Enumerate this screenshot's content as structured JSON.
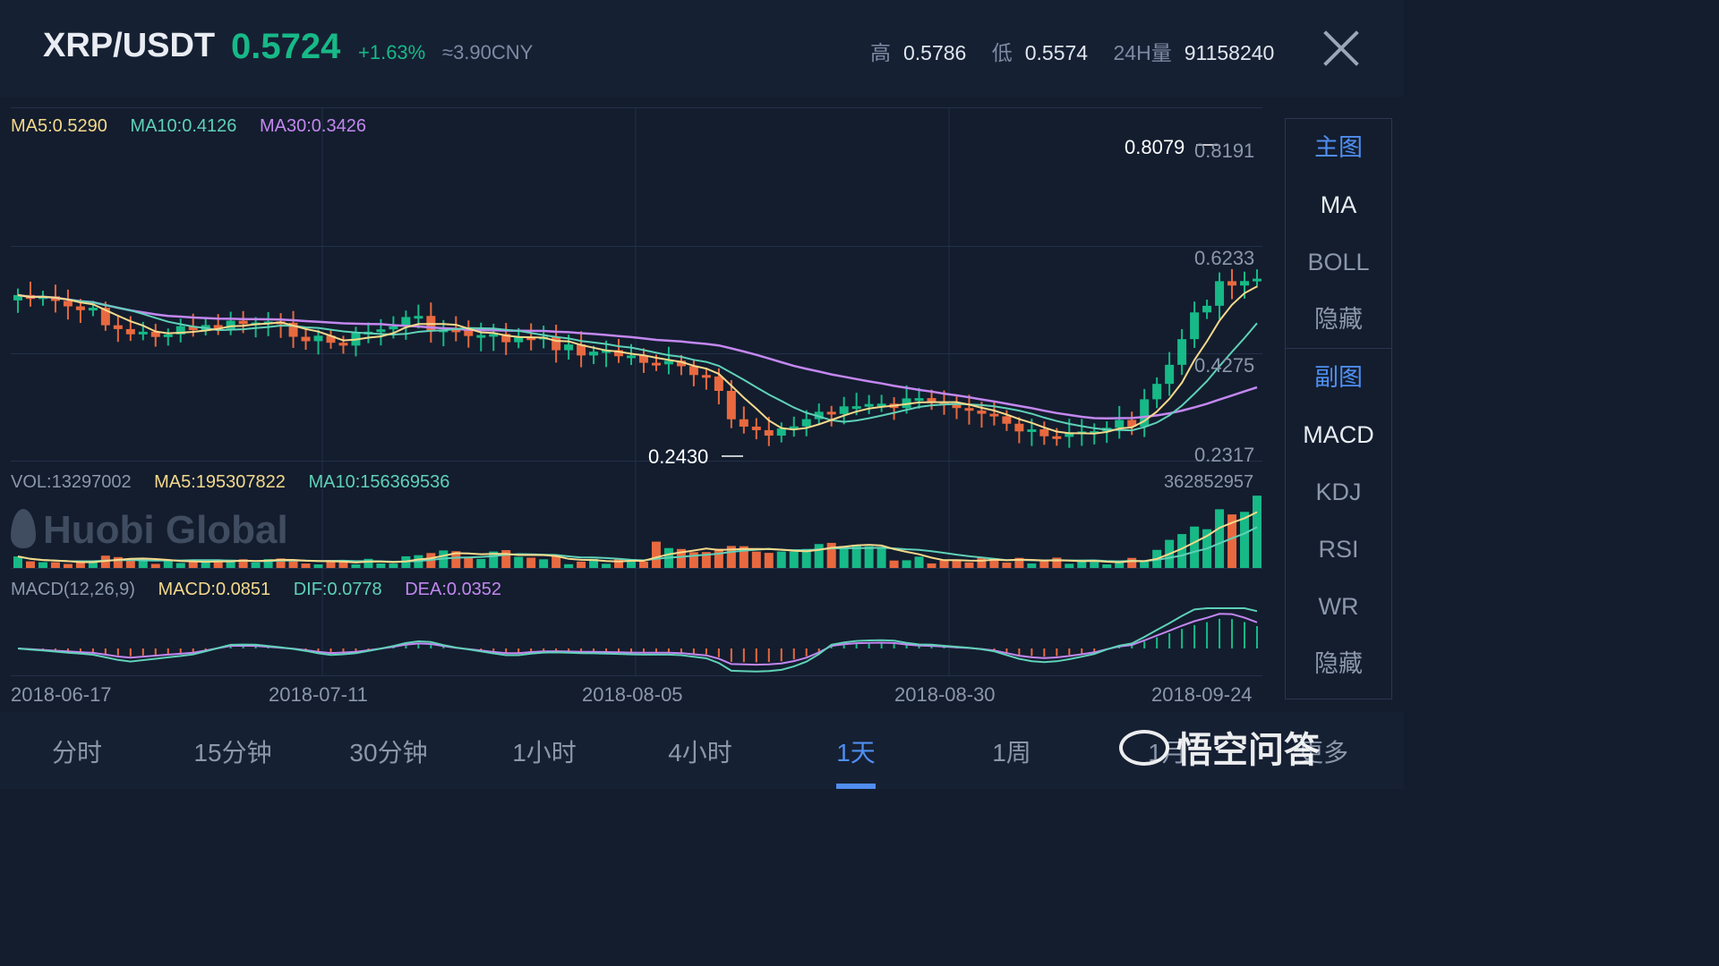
{
  "header": {
    "pair": "XRP/USDT",
    "price": "0.5724",
    "change": "+1.63%",
    "cny": "≈3.90CNY",
    "high_label": "高",
    "high_value": "0.5786",
    "low_label": "低",
    "low_value": "0.5574",
    "vol_label": "24H量",
    "vol_value": "91158240",
    "close_icon": "close-icon"
  },
  "ma_legend": {
    "ma5": "MA5:0.5290",
    "ma10": "MA10:0.4126",
    "ma30": "MA30:0.3426"
  },
  "price_axis": {
    "top": "0.8191",
    "mid1": "0.6233",
    "mid2": "0.4275",
    "bottom": "0.2317",
    "max_marker": "0.8079",
    "min_marker": "0.2430"
  },
  "vol_legend": {
    "vol": "VOL:13297002",
    "ma5": "MA5:195307822",
    "ma10": "MA10:156369536",
    "max": "362852957"
  },
  "macd_legend": {
    "label": "MACD(12,26,9)",
    "macd": "MACD:0.0851",
    "dif": "DIF:0.0778",
    "dea": "DEA:0.0352"
  },
  "dates": [
    "2018-06-17",
    "2018-07-11",
    "2018-08-05",
    "2018-08-30",
    "2018-09-24"
  ],
  "watermark": "Huobi Global",
  "side_panel": {
    "main_header": "主图",
    "main_items": [
      "MA",
      "BOLL",
      "隐藏"
    ],
    "sub_header": "副图",
    "sub_items": [
      "MACD",
      "KDJ",
      "RSI",
      "WR",
      "隐藏"
    ]
  },
  "bottom_tabs": [
    "分时",
    "15分钟",
    "30分钟",
    "1小时",
    "4小时",
    "1天",
    "1周",
    "1月",
    "更多"
  ],
  "active_tab": "1天",
  "brand": "悟空问答",
  "colors": {
    "up": "#17b987",
    "down": "#e8693f",
    "ma5": "#f5d98b",
    "ma10": "#5fd1b7",
    "ma30": "#c387f0",
    "accent": "#4f8ef0"
  }
}
